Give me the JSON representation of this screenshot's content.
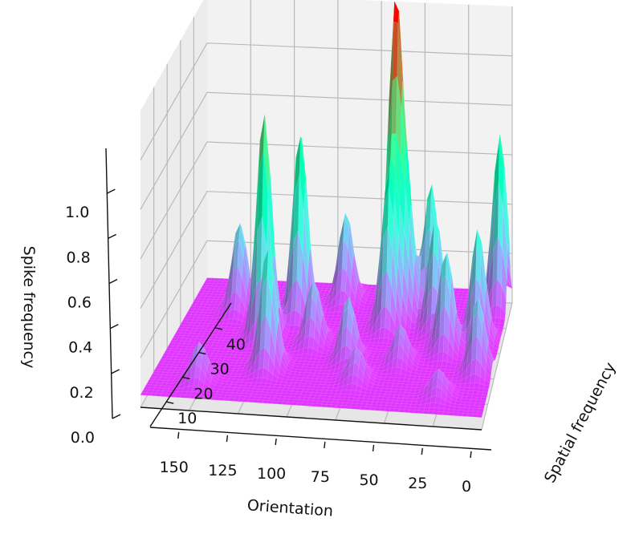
{
  "chart_data": {
    "type": "surface3d",
    "colormap": "rainbow",
    "xlabel": "Orientation",
    "ylabel": "Spatial frequency",
    "zlabel": "Spike frequency",
    "x_ticks": [
      0,
      25,
      50,
      75,
      100,
      125,
      150
    ],
    "y_ticks": [
      10,
      20,
      30,
      40
    ],
    "z_ticks": [
      "0.0",
      "0.2",
      "0.4",
      "0.6",
      "0.8",
      "1.0"
    ],
    "xlim": [
      0,
      175
    ],
    "ylim": [
      0,
      50
    ],
    "zlim": [
      0,
      1.2
    ],
    "baseline": 0.05,
    "peaks": [
      {
        "orientation": 62,
        "spatial_frequency": 40,
        "spike_frequency": 1.25
      },
      {
        "orientation": 63,
        "spatial_frequency": 34,
        "spike_frequency": 0.62
      },
      {
        "orientation": 55,
        "spatial_frequency": 38,
        "spike_frequency": 0.55
      },
      {
        "orientation": 128,
        "spatial_frequency": 28,
        "spike_frequency": 0.95
      },
      {
        "orientation": 113,
        "spatial_frequency": 36,
        "spike_frequency": 0.8
      },
      {
        "orientation": 118,
        "spatial_frequency": 15,
        "spike_frequency": 0.55
      },
      {
        "orientation": 148,
        "spatial_frequency": 38,
        "spike_frequency": 0.4
      },
      {
        "orientation": 150,
        "spatial_frequency": 8,
        "spike_frequency": 0.2
      },
      {
        "orientation": 92,
        "spatial_frequency": 44,
        "spike_frequency": 0.4
      },
      {
        "orientation": 43,
        "spatial_frequency": 42,
        "spike_frequency": 0.55
      },
      {
        "orientation": 37,
        "spatial_frequency": 34,
        "spike_frequency": 0.5
      },
      {
        "orientation": 28,
        "spatial_frequency": 26,
        "spike_frequency": 0.45
      },
      {
        "orientation": 5,
        "spatial_frequency": 44,
        "spike_frequency": 0.75
      },
      {
        "orientation": 12,
        "spatial_frequency": 30,
        "spike_frequency": 0.5
      },
      {
        "orientation": 8,
        "spatial_frequency": 18,
        "spike_frequency": 0.35
      },
      {
        "orientation": 78,
        "spatial_frequency": 20,
        "spike_frequency": 0.3
      },
      {
        "orientation": 70,
        "spatial_frequency": 12,
        "spike_frequency": 0.18
      },
      {
        "orientation": 50,
        "spatial_frequency": 20,
        "spike_frequency": 0.2
      },
      {
        "orientation": 25,
        "spatial_frequency": 8,
        "spike_frequency": 0.15
      },
      {
        "orientation": 100,
        "spatial_frequency": 26,
        "spike_frequency": 0.3
      }
    ]
  }
}
